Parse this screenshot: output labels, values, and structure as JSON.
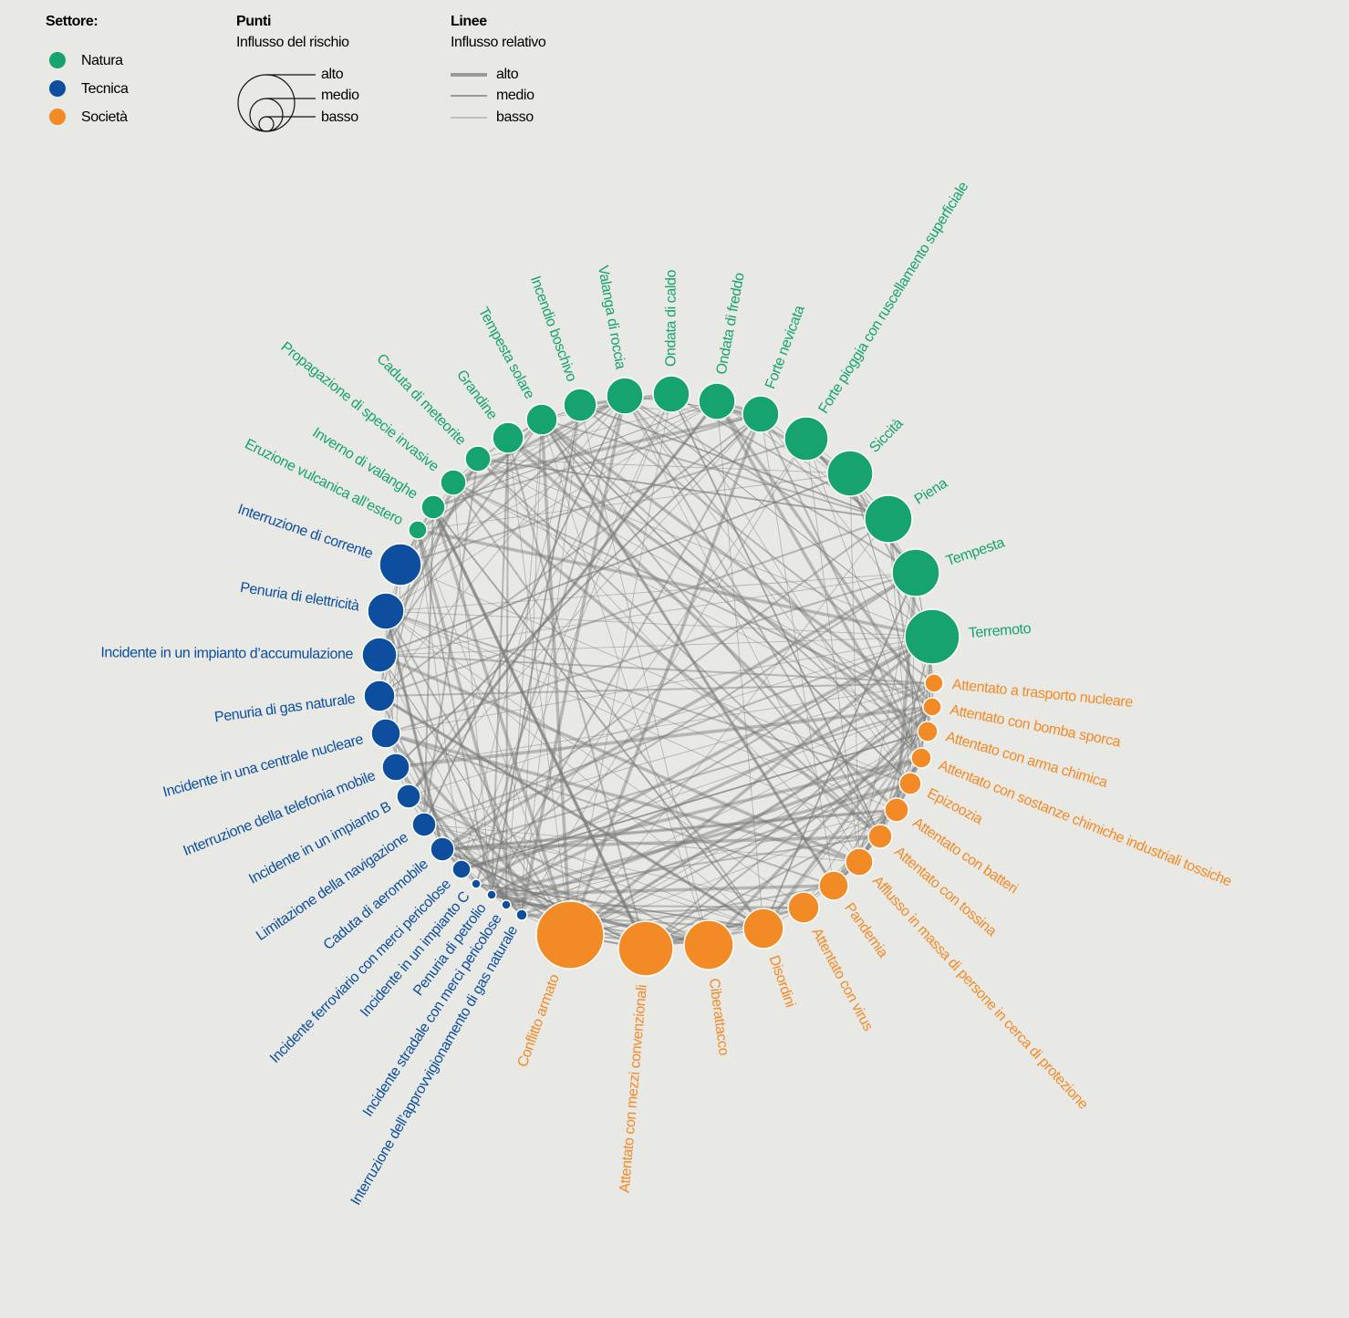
{
  "legend": {
    "sector_title": "Settore:",
    "sectors": [
      {
        "name": "Natura",
        "color": "#16a36e",
        "nodes": [
          "Terremoto",
          "Tempesta",
          "Piena",
          "Siccità",
          "Forte pioggia con ruscellamento superficiale",
          "Forte nevicata",
          "Ondata di freddo",
          "Ondata di caldo",
          "Valanga di roccia",
          "Incendio boschivo",
          "Tempesta solare",
          "Grandine",
          "Caduta di meteorite",
          "Propagazione di specie invasive",
          "Inverno di valanghe",
          "Eruzione vulcanica all’estero"
        ]
      },
      {
        "name": "Tecnica",
        "color": "#0d4f9e",
        "nodes": [
          "Interruzione di corrente",
          "Penuria di elettricità",
          "Incidente in un impianto d’accumulazione",
          "Penuria di gas naturale",
          "Incidente in una centrale nucleare",
          "Interruzione della telefonia mobile",
          "Incidente in un impianto B",
          "Limitazione della navigazione",
          "Caduta di aeromobile",
          "Incidente ferroviario con merci pericolose",
          "Incidente in un impianto C",
          "Penuria di petrolio",
          "Incidente stradale con merci pericolose",
          "Interruzione dell’approvvigionamento di gas naturale"
        ]
      },
      {
        "name": "Società",
        "color": "#f28a25",
        "nodes": [
          "Conflitto armato",
          "Attentato con mezzi convenzionali",
          "Ciberattacco",
          "Disordini",
          "Attentato con virus",
          "Pandemia",
          "Afflusso in massa di persone in cerca di protezione",
          "Attentato con tossina",
          "Attentato con batteri",
          "Epizoozia",
          "Attentato con sostanze chimiche industriali tossiche",
          "Attentato con arma chimica",
          "Attentato con bomba sporca",
          "Attentato a trasporto nucleare"
        ]
      }
    ],
    "points": {
      "title": "Punti",
      "subtitle": "Influsso del rischio",
      "levels": [
        "alto",
        "medio",
        "basso"
      ]
    },
    "lines": {
      "title": "Linee",
      "subtitle": "Influsso relativo",
      "levels": [
        "alto",
        "medio",
        "basso"
      ]
    }
  }
}
